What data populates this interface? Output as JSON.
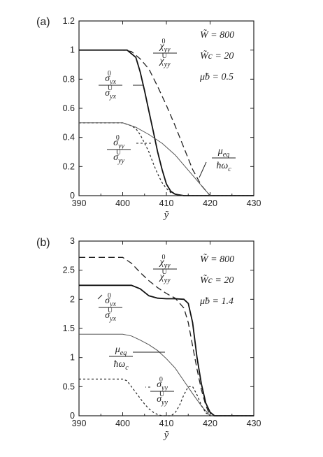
{
  "chart_data": [
    {
      "panel": "(a)",
      "type": "line",
      "xlabel": "ỹ",
      "xlim": [
        390,
        430
      ],
      "ylim": [
        0,
        1.2
      ],
      "xticks": [
        390,
        400,
        410,
        420,
        430
      ],
      "yticks": [
        0,
        0.2,
        0.4,
        0.6,
        0.8,
        1,
        1.2
      ],
      "params": [
        "W̃ = 800",
        "W̃c = 20",
        "μ̃b = 0.5"
      ],
      "series": [
        {
          "name": "χyy0 / χyyU",
          "style": "long-dash",
          "points": [
            [
              390,
              1
            ],
            [
              400,
              1
            ],
            [
              402,
              0.99
            ],
            [
              404,
              0.94
            ],
            [
              406,
              0.87
            ],
            [
              408,
              0.75
            ],
            [
              410,
              0.62
            ],
            [
              412,
              0.48
            ],
            [
              414,
              0.33
            ],
            [
              416,
              0.18
            ],
            [
              418,
              0.07
            ],
            [
              420,
              0
            ]
          ]
        },
        {
          "name": "σyx0 / σyxU",
          "style": "solid-heavy",
          "points": [
            [
              390,
              1
            ],
            [
              401,
              1
            ],
            [
              403,
              0.95
            ],
            [
              404,
              0.85
            ],
            [
              405,
              0.72
            ],
            [
              406,
              0.58
            ],
            [
              407,
              0.44
            ],
            [
              408,
              0.3
            ],
            [
              409,
              0.18
            ],
            [
              410,
              0.08
            ],
            [
              411,
              0.03
            ],
            [
              412,
              0.01
            ],
            [
              414,
              0
            ],
            [
              430,
              0
            ]
          ]
        },
        {
          "name": "σyy0 / σyyU",
          "style": "short-dash",
          "points": [
            [
              390,
              0.5
            ],
            [
              400,
              0.5
            ],
            [
              402,
              0.48
            ],
            [
              403,
              0.46
            ],
            [
              404,
              0.42
            ],
            [
              405,
              0.36
            ],
            [
              406,
              0.3
            ],
            [
              407,
              0.22
            ],
            [
              408,
              0.15
            ],
            [
              409,
              0.09
            ],
            [
              410,
              0.05
            ],
            [
              411,
              0.02
            ],
            [
              412,
              0.01
            ],
            [
              414,
              0
            ],
            [
              430,
              0
            ]
          ]
        },
        {
          "name": "μeq / ħωc",
          "style": "solid-thin",
          "points": [
            [
              390,
              0.5
            ],
            [
              400,
              0.5
            ],
            [
              403,
              0.47
            ],
            [
              406,
              0.42
            ],
            [
              409,
              0.36
            ],
            [
              412,
              0.28
            ],
            [
              414,
              0.21
            ],
            [
              416,
              0.14
            ],
            [
              418,
              0.07
            ],
            [
              420,
              0
            ]
          ]
        }
      ],
      "labels": {
        "chi_num": "χ",
        "chi_sub": "yy",
        "chi_sup_num": "0",
        "chi_sup_den": "U",
        "sx_num": "σ",
        "sx_sub": "yx",
        "sx_sup_num": "0",
        "sx_sup_den": "U",
        "sy_num": "σ",
        "sy_sub": "yy",
        "sy_sup_num": "0",
        "sy_sup_den": "U",
        "mu_num": "μ",
        "mu_num_sub": "eq",
        "mu_den": "ħω",
        "mu_den_sub": "c"
      }
    },
    {
      "panel": "(b)",
      "type": "line",
      "xlabel": "ỹ",
      "xlim": [
        390,
        430
      ],
      "ylim": [
        0,
        3
      ],
      "xticks": [
        390,
        400,
        410,
        420,
        430
      ],
      "yticks": [
        0,
        0.5,
        1,
        1.5,
        2,
        2.5,
        3
      ],
      "params": [
        "W̃ = 800",
        "W̃c = 20",
        "μ̃b = 1.4"
      ],
      "series": [
        {
          "name": "χyy0 / χyyU",
          "style": "long-dash",
          "points": [
            [
              390,
              2.72
            ],
            [
              400,
              2.72
            ],
            [
              402,
              2.62
            ],
            [
              404,
              2.46
            ],
            [
              406,
              2.32
            ],
            [
              408,
              2.2
            ],
            [
              410,
              2.1
            ],
            [
              412,
              2.02
            ],
            [
              414,
              1.85
            ],
            [
              415,
              1.6
            ],
            [
              416,
              1.2
            ],
            [
              417,
              0.8
            ],
            [
              418,
              0.45
            ],
            [
              419,
              0.18
            ],
            [
              420,
              0
            ]
          ]
        },
        {
          "name": "σyx0 / σyxU",
          "style": "solid-heavy",
          "points": [
            [
              390,
              2.24
            ],
            [
              402,
              2.24
            ],
            [
              404,
              2.18
            ],
            [
              406,
              2.06
            ],
            [
              408,
              2.02
            ],
            [
              410,
              2.01
            ],
            [
              412,
              2.01
            ],
            [
              414,
              2.0
            ],
            [
              415,
              1.93
            ],
            [
              416,
              1.6
            ],
            [
              417,
              1.0
            ],
            [
              418,
              0.55
            ],
            [
              419,
              0.22
            ],
            [
              420,
              0.06
            ],
            [
              421,
              0
            ],
            [
              430,
              0
            ]
          ]
        },
        {
          "name": "μeq / ħωc",
          "style": "solid-thin",
          "points": [
            [
              390,
              1.4
            ],
            [
              400,
              1.4
            ],
            [
              402,
              1.37
            ],
            [
              404,
              1.3
            ],
            [
              406,
              1.22
            ],
            [
              408,
              1.12
            ],
            [
              410,
              0.98
            ],
            [
              412,
              0.82
            ],
            [
              414,
              0.6
            ],
            [
              416,
              0.38
            ],
            [
              418,
              0.17
            ],
            [
              420,
              0
            ]
          ]
        },
        {
          "name": "σyy0 / σyyU",
          "style": "short-dash",
          "points": [
            [
              390,
              0.63
            ],
            [
              400,
              0.63
            ],
            [
              401,
              0.6
            ],
            [
              402,
              0.5
            ],
            [
              403,
              0.4
            ],
            [
              404,
              0.3
            ],
            [
              405,
              0.2
            ],
            [
              406,
              0.12
            ],
            [
              407,
              0.06
            ],
            [
              408,
              0.02
            ],
            [
              409,
              0
            ],
            [
              411,
              0
            ],
            [
              412,
              0.05
            ],
            [
              413,
              0.18
            ],
            [
              414,
              0.36
            ],
            [
              415,
              0.5
            ],
            [
              416,
              0.5
            ],
            [
              417,
              0.36
            ],
            [
              418,
              0.18
            ],
            [
              419,
              0.05
            ],
            [
              420,
              0
            ],
            [
              430,
              0
            ]
          ]
        }
      ],
      "labels": {
        "chi_num": "χ",
        "chi_sub": "yy",
        "chi_sup_num": "0",
        "chi_sup_den": "U",
        "sx_num": "σ",
        "sx_sub": "yx",
        "sx_sup_num": "0",
        "sx_sup_den": "U",
        "sy_num": "σ",
        "sy_sub": "yy",
        "sy_sup_num": "0",
        "sy_sup_den": "U",
        "mu_num": "μ",
        "mu_num_sub": "eq",
        "mu_den": "ħω",
        "mu_den_sub": "c"
      }
    }
  ]
}
